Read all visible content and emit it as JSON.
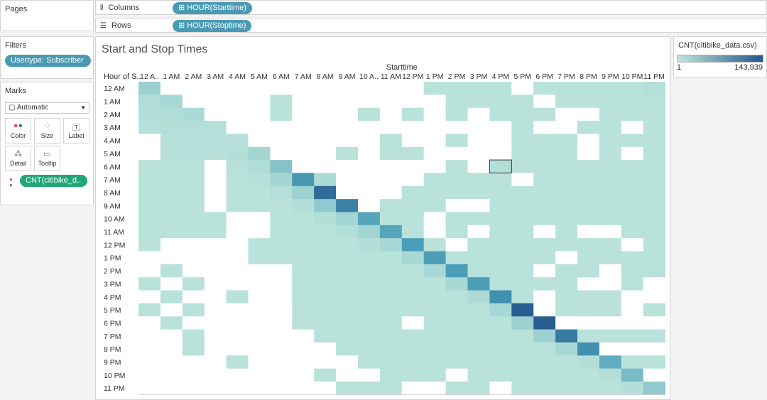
{
  "pages": {
    "title": "Pages"
  },
  "shelves": {
    "columns_label": "Columns",
    "columns_pill": "HOUR(Starttime)",
    "rows_label": "Rows",
    "rows_pill": "HOUR(Stoptime)"
  },
  "filters": {
    "title": "Filters",
    "pill": "Usertype: Subscriber"
  },
  "marks": {
    "title": "Marks",
    "type": "Automatic",
    "buttons": [
      {
        "label": "Color",
        "icon": "color-dots-icon"
      },
      {
        "label": "Size",
        "icon": "size-icon"
      },
      {
        "label": "Label",
        "icon": "label-icon"
      },
      {
        "label": "Detail",
        "icon": "detail-icon"
      },
      {
        "label": "Tooltip",
        "icon": "tooltip-icon"
      }
    ],
    "field_pill": "CNT(citibike_d.."
  },
  "legend": {
    "title": "CNT(citibike_data.csv)",
    "min_label": "1",
    "max_label": "143,939",
    "color_low": "#bfe6dc",
    "color_high": "#23568a"
  },
  "colors": {
    "empty": "#ffffff",
    "pill_blue": "#4a9ab4",
    "pill_green": "#1fa877"
  },
  "chart_data": {
    "type": "heatmap",
    "title": "Start and Stop Times",
    "x_axis_title": "Starttime",
    "row_header": "Hour of S..",
    "x_tick_labels": [
      "12 A..",
      "1 AM",
      "2 AM",
      "3 AM",
      "4 AM",
      "5 AM",
      "6 AM",
      "7 AM",
      "8 AM",
      "9 AM",
      "10 A..",
      "11 AM",
      "12 PM",
      "1 PM",
      "2 PM",
      "3 PM",
      "4 PM",
      "5 PM",
      "6 PM",
      "7 PM",
      "8 PM",
      "9 PM",
      "10 PM",
      "11 PM"
    ],
    "y_tick_labels": [
      "12 AM",
      "1 AM",
      "2 AM",
      "3 AM",
      "4 AM",
      "5 AM",
      "6 AM",
      "7 AM",
      "8 AM",
      "9 AM",
      "10 AM",
      "11 AM",
      "12 PM",
      "1 PM",
      "2 PM",
      "3 PM",
      "4 PM",
      "5 PM",
      "6 PM",
      "7 PM",
      "8 PM",
      "9 PM",
      "10 PM",
      "11 PM"
    ],
    "value_range": [
      1,
      143939
    ],
    "note_values": "relative intensity 0-1 per cell; 0 = no data (blank)",
    "matrix": [
      [
        0.15,
        0,
        0,
        0,
        0,
        0,
        0,
        0,
        0,
        0,
        0,
        0,
        0,
        0.03,
        0.03,
        0.03,
        0.03,
        0,
        0.03,
        0.03,
        0.03,
        0.03,
        0.03,
        0.05
      ],
      [
        0.06,
        0.1,
        0,
        0,
        0,
        0,
        0.03,
        0,
        0,
        0,
        0,
        0,
        0,
        0,
        0.03,
        0.03,
        0.03,
        0.03,
        0,
        0.03,
        0.03,
        0.03,
        0.03,
        0.03
      ],
      [
        0.05,
        0.06,
        0.08,
        0,
        0,
        0,
        0.03,
        0,
        0,
        0,
        0.03,
        0,
        0.03,
        0,
        0.03,
        0,
        0.03,
        0.03,
        0.03,
        0,
        0,
        0.03,
        0.03,
        0.03
      ],
      [
        0.04,
        0.05,
        0.05,
        0.05,
        0,
        0,
        0,
        0,
        0,
        0,
        0,
        0,
        0,
        0,
        0,
        0,
        0,
        0.03,
        0,
        0,
        0.03,
        0.03,
        0,
        0.03
      ],
      [
        0,
        0.04,
        0.04,
        0.04,
        0.04,
        0,
        0,
        0,
        0,
        0,
        0,
        0.03,
        0,
        0,
        0.03,
        0,
        0,
        0.03,
        0.03,
        0.03,
        0,
        0.03,
        0.03,
        0.03
      ],
      [
        0,
        0.04,
        0.04,
        0.04,
        0.05,
        0.12,
        0,
        0,
        0,
        0.03,
        0,
        0.03,
        0.03,
        0,
        0,
        0,
        0,
        0.03,
        0.03,
        0.03,
        0,
        0.03,
        0,
        0.03
      ],
      [
        0.03,
        0.03,
        0.03,
        0,
        0.04,
        0.06,
        0.25,
        0,
        0,
        0,
        0,
        0,
        0,
        0,
        0.03,
        0,
        0.05,
        0.03,
        0.03,
        0.03,
        0.03,
        0.03,
        0.03,
        0.03
      ],
      [
        0.03,
        0.03,
        0.03,
        0,
        0.03,
        0.04,
        0.12,
        0.55,
        0.08,
        0,
        0,
        0,
        0,
        0.03,
        0.03,
        0.03,
        0.03,
        0,
        0.03,
        0.03,
        0.03,
        0.03,
        0.03,
        0.03
      ],
      [
        0.03,
        0.03,
        0.03,
        0,
        0.03,
        0.03,
        0.05,
        0.15,
        0.85,
        0,
        0,
        0,
        0.03,
        0.03,
        0.03,
        0.03,
        0.03,
        0.03,
        0.03,
        0.03,
        0.03,
        0.03,
        0.03,
        0.03
      ],
      [
        0.03,
        0.03,
        0.03,
        0,
        0.03,
        0.03,
        0.03,
        0.05,
        0.2,
        0.7,
        0,
        0.03,
        0.03,
        0.03,
        0,
        0,
        0.03,
        0.03,
        0.03,
        0.03,
        0.03,
        0.03,
        0.03,
        0.03
      ],
      [
        0.03,
        0.03,
        0.03,
        0.03,
        0,
        0,
        0.03,
        0.03,
        0.05,
        0.12,
        0.45,
        0.03,
        0.03,
        0,
        0.03,
        0.03,
        0.03,
        0.03,
        0.03,
        0.03,
        0.03,
        0.03,
        0.03,
        0.03
      ],
      [
        0.03,
        0.03,
        0.03,
        0.03,
        0,
        0,
        0.03,
        0.03,
        0.03,
        0.05,
        0.12,
        0.45,
        0.03,
        0,
        0.03,
        0,
        0.03,
        0.03,
        0,
        0.03,
        0,
        0,
        0.03,
        0.03
      ],
      [
        0.03,
        0,
        0,
        0,
        0,
        0.03,
        0.03,
        0.03,
        0.03,
        0.03,
        0.05,
        0.1,
        0.5,
        0.03,
        0,
        0.03,
        0.03,
        0.03,
        0.03,
        0.03,
        0.03,
        0.03,
        0,
        0.03
      ],
      [
        0,
        0,
        0,
        0,
        0,
        0.03,
        0.03,
        0.03,
        0.03,
        0.03,
        0.03,
        0.03,
        0.1,
        0.5,
        0.03,
        0.03,
        0.03,
        0.03,
        0.03,
        0,
        0.03,
        0.03,
        0.03,
        0.03
      ],
      [
        0,
        0.03,
        0,
        0,
        0,
        0,
        0,
        0.03,
        0.03,
        0.03,
        0.03,
        0.03,
        0.03,
        0.1,
        0.5,
        0.03,
        0.03,
        0.03,
        0,
        0.03,
        0.03,
        0,
        0.03,
        0.03
      ],
      [
        0.03,
        0,
        0.03,
        0,
        0,
        0,
        0,
        0.03,
        0.03,
        0.03,
        0.03,
        0.03,
        0.03,
        0.03,
        0.1,
        0.5,
        0.03,
        0.03,
        0.03,
        0.03,
        0,
        0,
        0.03,
        0
      ],
      [
        0,
        0.03,
        0,
        0,
        0.03,
        0,
        0,
        0.03,
        0.03,
        0.03,
        0.03,
        0.03,
        0.03,
        0.03,
        0.03,
        0.08,
        0.6,
        0.03,
        0,
        0.03,
        0.03,
        0.03,
        0,
        0
      ],
      [
        0.03,
        0,
        0.03,
        0,
        0,
        0,
        0,
        0.03,
        0.03,
        0.03,
        0.03,
        0.03,
        0.03,
        0.03,
        0.03,
        0.03,
        0.1,
        0.95,
        0,
        0.03,
        0.03,
        0.03,
        0,
        0.03
      ],
      [
        0,
        0.03,
        0,
        0,
        0,
        0,
        0,
        0.03,
        0.03,
        0.03,
        0.03,
        0.03,
        0,
        0.03,
        0.03,
        0.03,
        0.03,
        0.15,
        0.95,
        0,
        0,
        0,
        0,
        0
      ],
      [
        0,
        0,
        0.03,
        0,
        0,
        0,
        0,
        0,
        0.03,
        0.03,
        0.03,
        0.03,
        0.03,
        0.03,
        0.03,
        0.03,
        0.03,
        0.03,
        0.15,
        0.75,
        0.03,
        0.03,
        0.03,
        0.03
      ],
      [
        0,
        0,
        0.03,
        0,
        0,
        0,
        0,
        0,
        0,
        0.03,
        0.03,
        0.03,
        0.03,
        0.03,
        0.03,
        0.03,
        0.03,
        0.03,
        0.03,
        0.1,
        0.6,
        0,
        0,
        0
      ],
      [
        0,
        0,
        0,
        0,
        0.03,
        0,
        0,
        0,
        0,
        0,
        0.03,
        0.03,
        0.03,
        0.03,
        0.03,
        0.03,
        0.03,
        0.03,
        0.03,
        0.03,
        0.05,
        0.4,
        0.03,
        0.03
      ],
      [
        0,
        0,
        0,
        0,
        0,
        0,
        0,
        0,
        0.03,
        0,
        0,
        0.03,
        0.03,
        0.03,
        0,
        0.03,
        0.03,
        0.03,
        0.03,
        0.03,
        0.03,
        0.05,
        0.3,
        0
      ],
      [
        0,
        0,
        0,
        0,
        0,
        0,
        0,
        0,
        0,
        0.03,
        0.03,
        0.03,
        0,
        0,
        0.03,
        0.03,
        0,
        0.03,
        0.03,
        0.03,
        0.03,
        0.03,
        0.05,
        0.2
      ]
    ],
    "highlighted_cell": {
      "column": "4 PM",
      "row": "6 AM"
    }
  }
}
